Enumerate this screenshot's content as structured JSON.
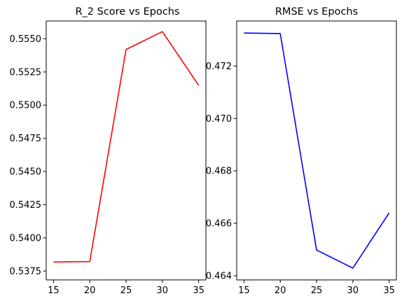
{
  "chart_data": [
    {
      "type": "line",
      "title": "R_2 Score vs Epochs",
      "xlabel": "",
      "ylabel": "",
      "x": [
        15,
        20,
        25,
        30,
        35
      ],
      "series": [
        {
          "values": [
            0.53818,
            0.53821,
            0.55419,
            0.55554,
            0.55149
          ],
          "color": "#ff0000"
        }
      ],
      "xlim": [
        14.0,
        36.0
      ],
      "ylim": [
        0.53683,
        0.55634
      ],
      "xticks": [
        15,
        20,
        25,
        30,
        35
      ],
      "xtick_labels": [
        "15",
        "20",
        "25",
        "30",
        "35"
      ],
      "yticks": [
        0.5375,
        0.54,
        0.5425,
        0.545,
        0.5475,
        0.55,
        0.5525,
        0.555
      ],
      "ytick_labels": [
        "0.5375",
        "0.5400",
        "0.5425",
        "0.5450",
        "0.5475",
        "0.5500",
        "0.5525",
        "0.5550"
      ],
      "grid": false,
      "legend": false
    },
    {
      "type": "line",
      "title": "RMSE vs Epochs",
      "xlabel": "",
      "ylabel": "",
      "x": [
        15,
        20,
        25,
        30,
        35
      ],
      "series": [
        {
          "values": [
            0.47326,
            0.47324,
            0.46498,
            0.46429,
            0.4664
          ],
          "color": "#0000ff"
        }
      ],
      "xlim": [
        14.0,
        36.0
      ],
      "ylim": [
        0.46384,
        0.47372
      ],
      "xticks": [
        15,
        20,
        25,
        30,
        35
      ],
      "xtick_labels": [
        "15",
        "20",
        "25",
        "30",
        "35"
      ],
      "yticks": [
        0.464,
        0.466,
        0.468,
        0.47,
        0.472
      ],
      "ytick_labels": [
        "0.464",
        "0.466",
        "0.468",
        "0.470",
        "0.472"
      ],
      "grid": false,
      "legend": false
    }
  ]
}
